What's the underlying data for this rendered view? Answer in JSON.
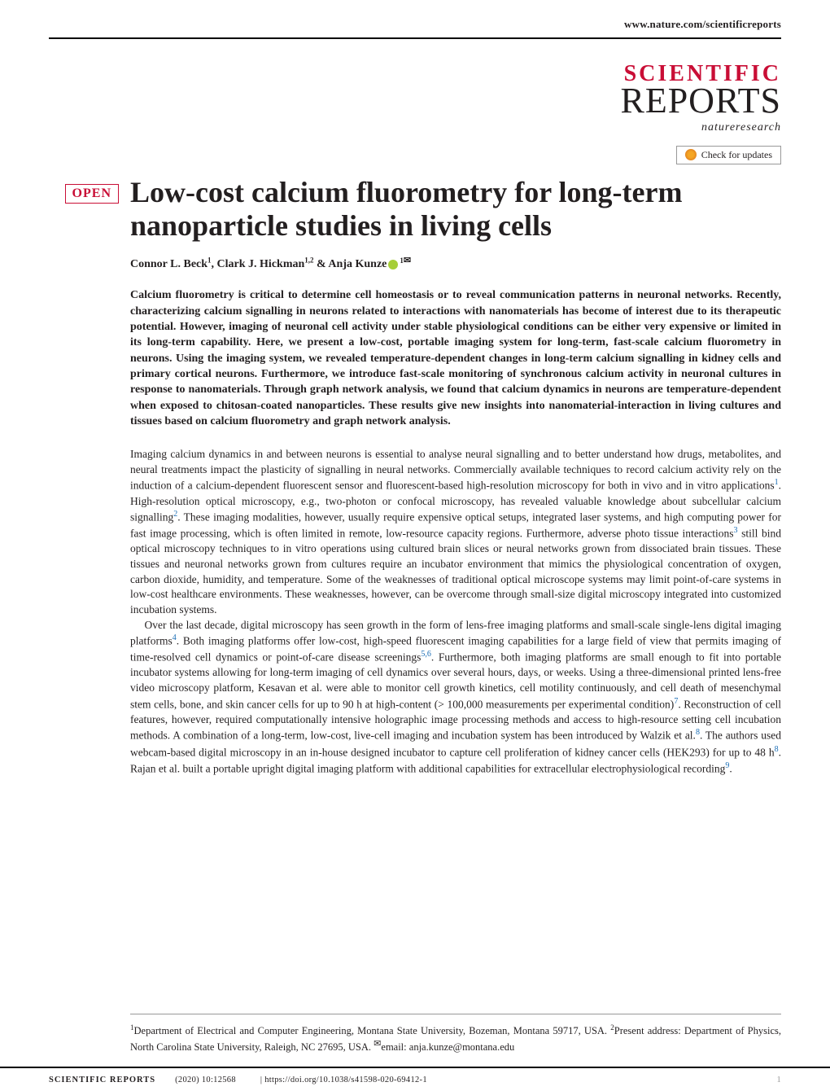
{
  "top_url": "www.nature.com/scientificreports",
  "journal": {
    "scientific": "SCIENTIFIC",
    "reports": "REPORTS",
    "nature_research": "natureresearch"
  },
  "check_updates_label": "Check for updates",
  "open_label": "OPEN",
  "article": {
    "title": "Low-cost calcium fluorometry for long-term nanoparticle studies in living cells",
    "authors_html": "Connor L. Beck<sup>1</sup>, Clark J. Hickman<sup>1,2</sup> & Anja Kunze",
    "corr_sup": "1",
    "abstract": "Calcium fluorometry is critical to determine cell homeostasis or to reveal communication patterns in neuronal networks. Recently, characterizing calcium signalling in neurons related to interactions with nanomaterials has become of interest due to its therapeutic potential. However, imaging of neuronal cell activity under stable physiological conditions can be either very expensive or limited in its long-term capability. Here, we present a low-cost, portable imaging system for long-term, fast-scale calcium fluorometry in neurons. Using the imaging system, we revealed temperature-dependent changes in long-term calcium signalling in kidney cells and primary cortical neurons. Furthermore, we introduce fast-scale monitoring of synchronous calcium activity in neuronal cultures in response to nanomaterials. Through graph network analysis, we found that calcium dynamics in neurons are temperature-dependent when exposed to chitosan-coated nanoparticles. These results give new insights into nanomaterial-interaction in living cultures and tissues based on calcium fluorometry and graph network analysis.",
    "para1_pre": "Imaging calcium dynamics in and between neurons is essential to analyse neural signalling and to better understand how drugs, metabolites, and neural treatments impact the plasticity of signalling in neural networks. Commercially available techniques to record calcium activity rely on the induction of a calcium-dependent fluorescent sensor and fluorescent-based high-resolution microscopy for both in vivo and in vitro applications",
    "para1_mid1": ". High-resolution optical microscopy, e.g., two-photon or confocal microscopy, has revealed valuable knowledge about subcellular calcium signalling",
    "para1_mid2": ". These imaging modalities, however, usually require expensive optical setups, integrated laser systems, and high computing power for fast image processing, which is often limited in remote, low-resource capacity regions. Furthermore, adverse photo tissue interactions",
    "para1_post": " still bind optical microscopy techniques to in vitro operations using cultured brain slices or neural networks grown from dissociated brain tissues. These tissues and neuronal networks grown from cultures require an incubator environment that mimics the physiological concentration of oxygen, carbon dioxide, humidity, and temperature. Some of the weaknesses of traditional optical microscope systems may limit point-of-care systems in low-cost healthcare environments. These weaknesses, however, can be overcome through small-size digital microscopy integrated into customized incubation systems.",
    "para2_a": "Over the last decade, digital microscopy has seen growth in the form of lens-free imaging platforms and small-scale single-lens digital imaging platforms",
    "para2_b": ". Both imaging platforms offer low-cost, high-speed fluorescent imaging capabilities for a large field of view that permits imaging of time-resolved cell dynamics or point-of-care disease screenings",
    "para2_c": ". Furthermore, both imaging platforms are small enough to fit into portable incubator systems allowing for long-term imaging of cell dynamics over several hours, days, or weeks. Using a three-dimensional printed lens-free video microscopy platform, Kesavan et al. were able to monitor cell growth kinetics, cell motility continuously, and cell death of mesenchymal stem cells, bone, and skin cancer cells for up to 90 h at high-content (> 100,000 measurements per experimental condition)",
    "para2_d": ". Reconstruction of cell features, however, required computationally intensive holographic image processing methods and access to high-resource setting cell incubation methods. A combination of a long-term, low-cost, live-cell imaging and incubation system has been introduced by Walzik et al.",
    "para2_e": ". The authors used webcam-based digital microscopy in an in-house designed incubator to capture cell proliferation of kidney cancer cells (HEK293) for up to 48 h",
    "para2_f": ". Rajan et al. built a portable upright digital imaging platform with additional capabilities for extracellular electrophysiological recording",
    "para2_g": ".",
    "refs": {
      "r1": "1",
      "r2": "2",
      "r3": "3",
      "r4": "4",
      "r56": "5,6",
      "r7": "7",
      "r8a": "8",
      "r8b": "8",
      "r9": "9"
    }
  },
  "affiliations": {
    "a1_sup": "1",
    "a1": "Department of Electrical and Computer Engineering, Montana State University, Bozeman, Montana 59717, USA. ",
    "a2_sup": "2",
    "a2": "Present address: Department of Physics, North Carolina State University, Raleigh, NC 27695, USA. ",
    "email_label": "email: ",
    "email": "anja.kunze@montana.edu"
  },
  "footer": {
    "journal": "SCIENTIFIC REPORTS",
    "citation": "(2020) 10:12568",
    "doi": "https://doi.org/10.1038/s41598-020-69412-1",
    "page": "1"
  },
  "colors": {
    "accent": "#c90e36",
    "text": "#231f20",
    "link": "#1a6db5",
    "rule": "#000000",
    "orcid": "#a6ce39"
  }
}
